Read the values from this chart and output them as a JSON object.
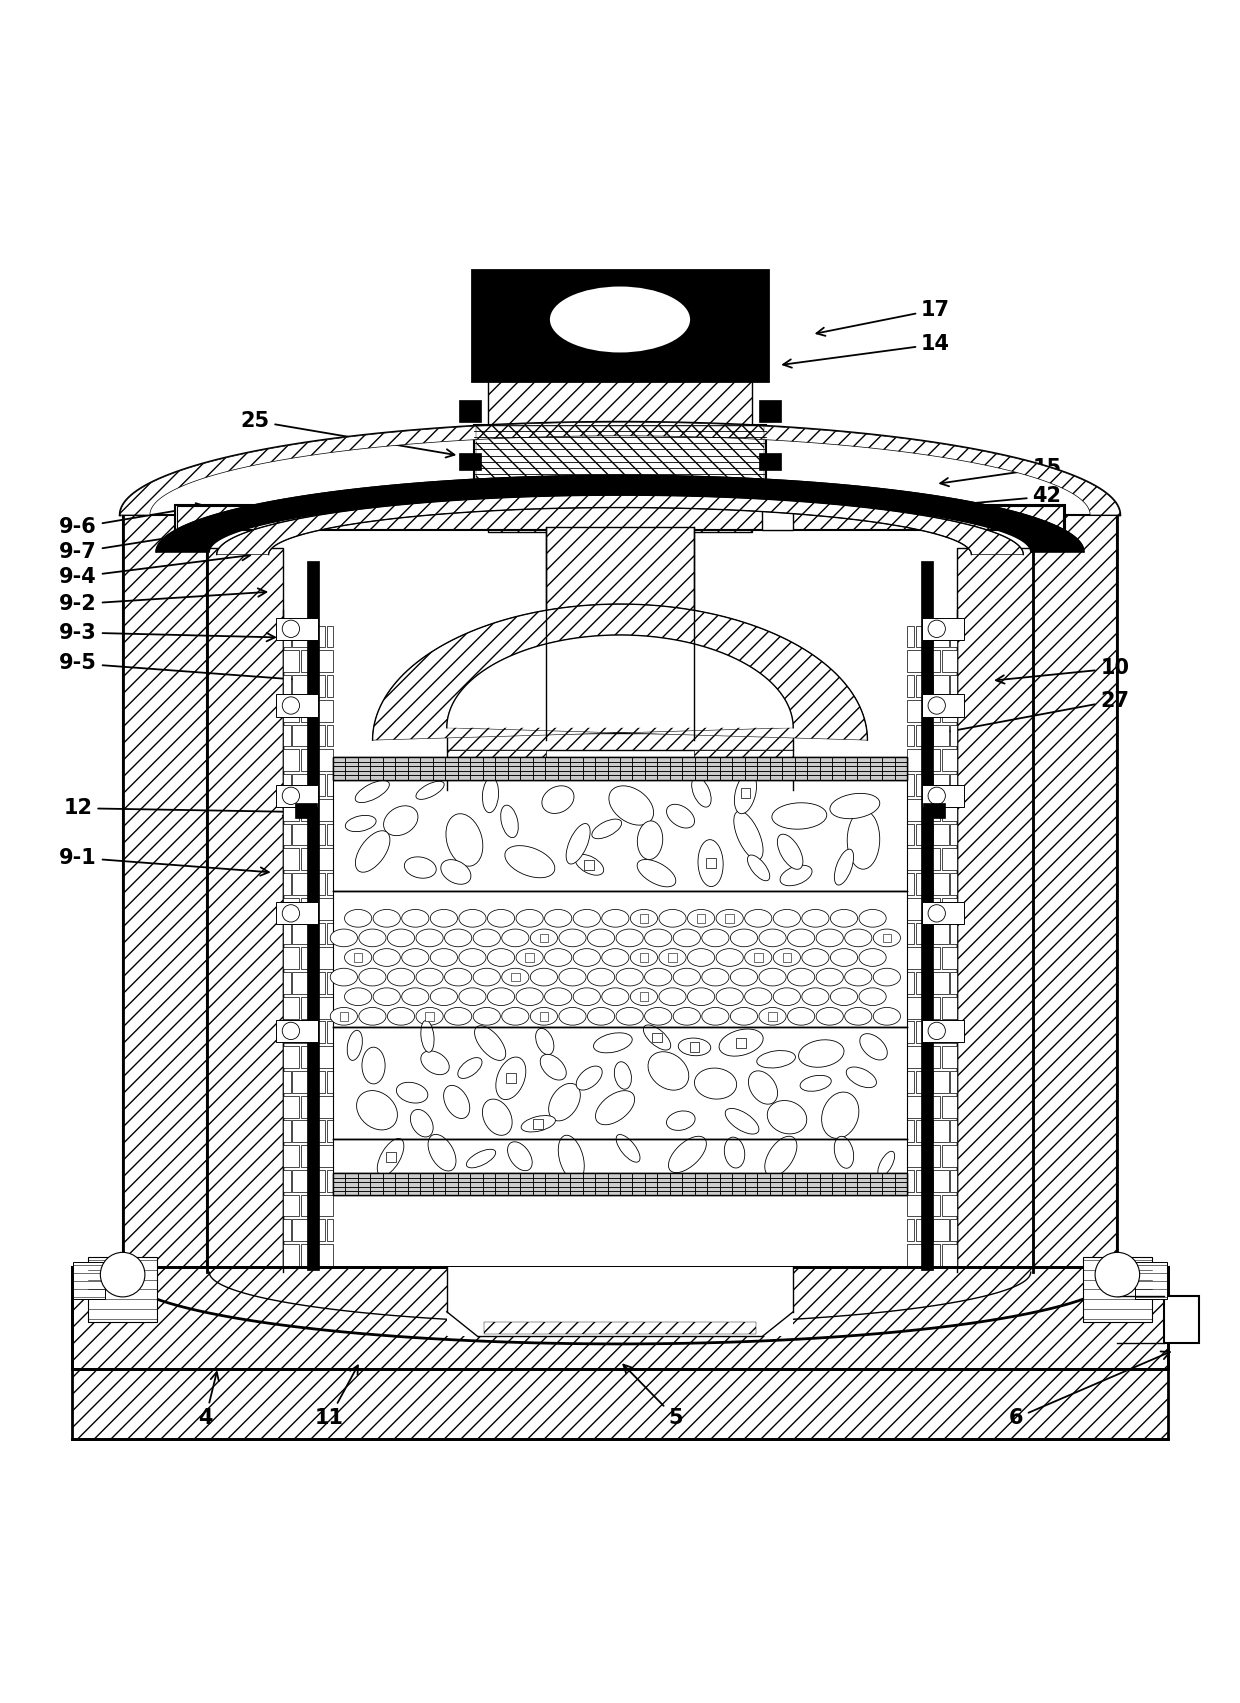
{
  "bg_color": "#ffffff",
  "line_color": "#000000",
  "figsize": [
    12.4,
    17.03
  ],
  "dpi": 100,
  "label_positions": {
    "17": {
      "lxy": [
        0.755,
        0.938
      ],
      "axy": [
        0.655,
        0.918
      ]
    },
    "14": {
      "lxy": [
        0.755,
        0.91
      ],
      "axy": [
        0.628,
        0.893
      ]
    },
    "25": {
      "lxy": [
        0.205,
        0.848
      ],
      "axy": [
        0.37,
        0.82
      ]
    },
    "15": {
      "lxy": [
        0.845,
        0.81
      ],
      "axy": [
        0.755,
        0.797
      ]
    },
    "42": {
      "lxy": [
        0.845,
        0.787
      ],
      "axy": [
        0.735,
        0.777
      ]
    },
    "9-6": {
      "lxy": [
        0.062,
        0.762
      ],
      "axy": [
        0.168,
        0.78
      ]
    },
    "9-7": {
      "lxy": [
        0.062,
        0.742
      ],
      "axy": [
        0.195,
        0.763
      ]
    },
    "9-4": {
      "lxy": [
        0.062,
        0.722
      ],
      "axy": [
        0.205,
        0.74
      ]
    },
    "9-2": {
      "lxy": [
        0.062,
        0.7
      ],
      "axy": [
        0.218,
        0.71
      ]
    },
    "9-3": {
      "lxy": [
        0.062,
        0.677
      ],
      "axy": [
        0.225,
        0.673
      ]
    },
    "9-5": {
      "lxy": [
        0.062,
        0.652
      ],
      "axy": [
        0.265,
        0.637
      ]
    },
    "10": {
      "lxy": [
        0.9,
        0.648
      ],
      "axy": [
        0.8,
        0.638
      ]
    },
    "27": {
      "lxy": [
        0.9,
        0.622
      ],
      "axy": [
        0.75,
        0.594
      ]
    },
    "12": {
      "lxy": [
        0.062,
        0.535
      ],
      "axy": [
        0.238,
        0.532
      ]
    },
    "9-1": {
      "lxy": [
        0.062,
        0.495
      ],
      "axy": [
        0.22,
        0.483
      ]
    },
    "4": {
      "lxy": [
        0.165,
        0.042
      ],
      "axy": [
        0.175,
        0.083
      ]
    },
    "11": {
      "lxy": [
        0.265,
        0.042
      ],
      "axy": [
        0.29,
        0.088
      ]
    },
    "5": {
      "lxy": [
        0.545,
        0.042
      ],
      "axy": [
        0.5,
        0.088
      ]
    },
    "6": {
      "lxy": [
        0.82,
        0.042
      ],
      "axy": [
        0.948,
        0.097
      ]
    }
  }
}
